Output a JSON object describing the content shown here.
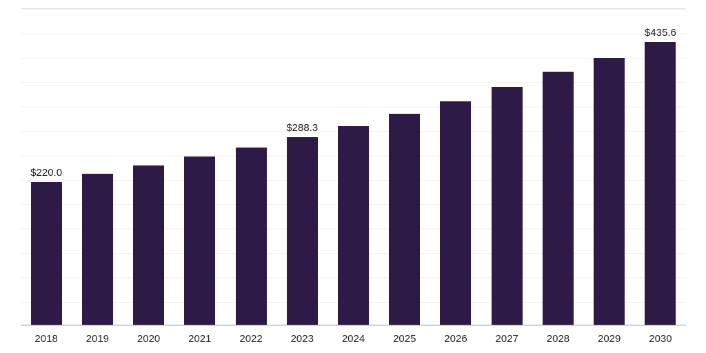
{
  "chart_data": {
    "type": "bar",
    "title": "",
    "xlabel": "",
    "ylabel": "",
    "categories": [
      "2018",
      "2019",
      "2020",
      "2021",
      "2022",
      "2023",
      "2024",
      "2025",
      "2026",
      "2027",
      "2028",
      "2029",
      "2030"
    ],
    "values": [
      220.0,
      232.2,
      245.1,
      258.7,
      273.1,
      288.3,
      305.8,
      324.3,
      344.0,
      366.0,
      389.0,
      410.5,
      435.6
    ],
    "data_labels": [
      "$220.0",
      "",
      "",
      "",
      "",
      "$288.3",
      "",
      "",
      "",
      "",
      "",
      "",
      "$435.6"
    ],
    "ylim": [
      0,
      486
    ],
    "grid": "horizontal",
    "legend": "none"
  },
  "colors": {
    "bar": "#2e1a47",
    "gridline": "#f2f2f2",
    "gridline_top": "#e2e2e2",
    "axis": "#8c8c8c",
    "label": "#1a1a1a"
  }
}
